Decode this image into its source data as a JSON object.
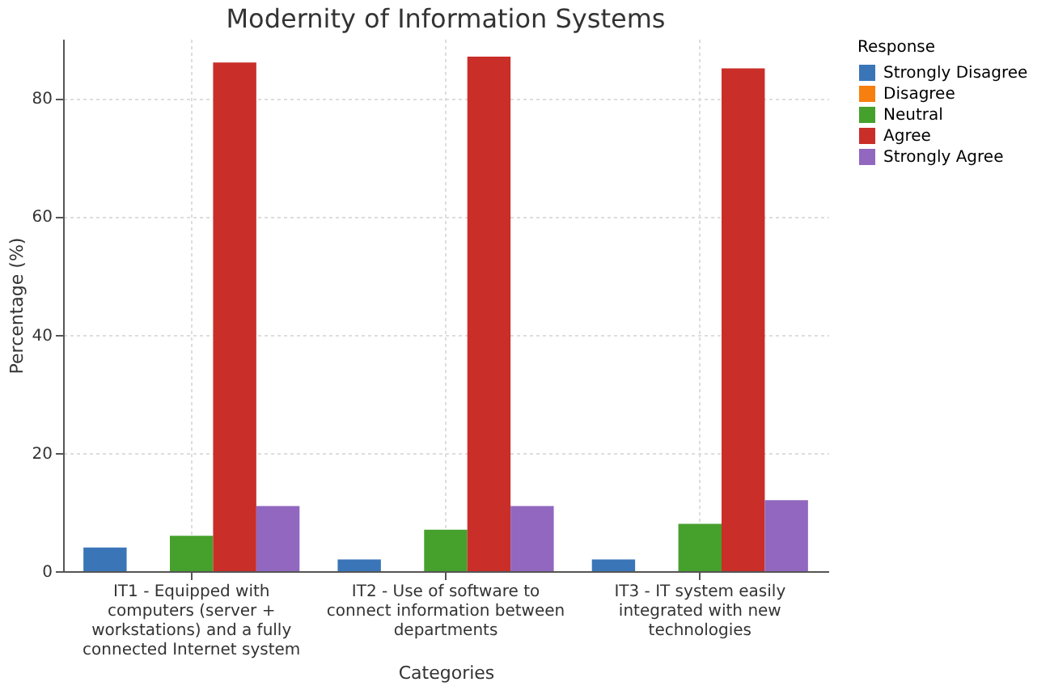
{
  "chart_data": {
    "type": "bar",
    "title": "Modernity of Information Systems",
    "xlabel": "Categories",
    "ylabel": "Percentage (%)",
    "legend_title": "Response",
    "categories": [
      "IT1 - Equipped with computers (server + workstations) and a fully connected Internet system",
      "IT2 - Use of software to connect information between departments",
      "IT3 - IT system easily integrated with new technologies"
    ],
    "series": [
      {
        "name": "Strongly Disagree",
        "color": "#3a75b8",
        "values": [
          4,
          2,
          2
        ]
      },
      {
        "name": "Disagree",
        "color": "#f77f0f",
        "values": [
          0,
          0,
          0
        ]
      },
      {
        "name": "Neutral",
        "color": "#46a02c",
        "values": [
          6,
          7,
          8
        ]
      },
      {
        "name": "Agree",
        "color": "#c92e29",
        "values": [
          86,
          87,
          85
        ]
      },
      {
        "name": "Strongly Agree",
        "color": "#9167bf",
        "values": [
          11,
          11,
          12
        ]
      }
    ],
    "ylim": [
      0,
      90
    ],
    "yticks": [
      0,
      20,
      40,
      60,
      80
    ],
    "grid": true,
    "legend": "top right"
  }
}
